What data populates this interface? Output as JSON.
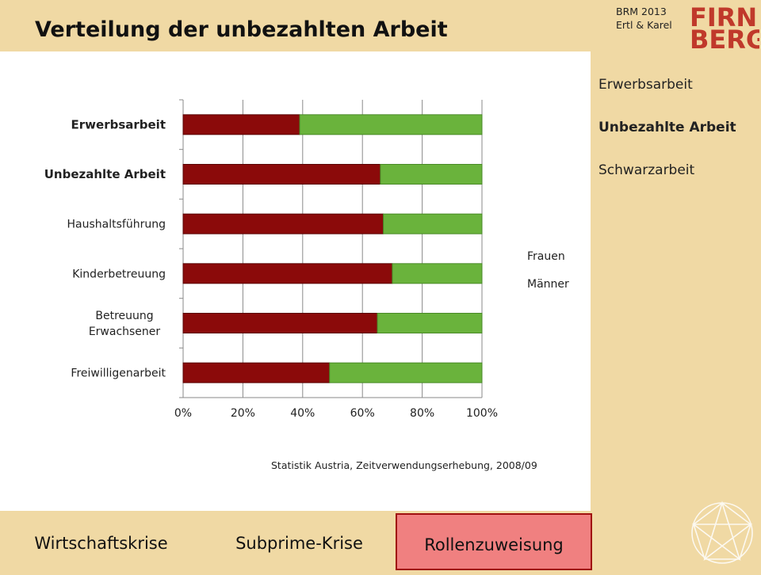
{
  "header": {
    "title": "Verteilung der unbezahlten Arbeit",
    "course": "BRM 2013",
    "authors": "Ertl & Karel",
    "logo_text_top": "FIRN",
    "logo_text_bottom": "BERG"
  },
  "side_nav": {
    "items": [
      {
        "label": "Erwerbsarbeit",
        "active": false
      },
      {
        "label": "Unbezahlte Arbeit",
        "active": true
      },
      {
        "label": "Schwarzarbeit",
        "active": false
      }
    ]
  },
  "bottom_nav": {
    "tabs": [
      {
        "label": "Wirtschaftskrise",
        "active": false
      },
      {
        "label": "Subprime-Krise",
        "active": false
      },
      {
        "label": "Rollenzuweisung",
        "active": true
      }
    ]
  },
  "colors": {
    "frauen": "#8b0a0a",
    "maenner": "#6ab33c",
    "background": "#f0d9a4",
    "active_tab": "#f08080"
  },
  "chart_data": {
    "type": "bar",
    "orientation": "horizontal",
    "stacked": "percent",
    "categories": [
      "Erwerbsarbeit",
      "Unbezahlte Arbeit",
      "Haushaltsführung",
      "Kinderbetreuung",
      "Betreuung Erwachsener",
      "Freiwilligenarbeit"
    ],
    "category_lines": [
      [
        "Erwerbsarbeit"
      ],
      [
        "Unbezahlte Arbeit"
      ],
      [
        "Haushaltsführung"
      ],
      [
        "Kinderbetreuung"
      ],
      [
        "Betreuung",
        "Erwachsener"
      ],
      [
        "Freiwilligenarbeit"
      ]
    ],
    "category_bold": [
      true,
      true,
      false,
      false,
      false,
      false
    ],
    "series": [
      {
        "name": "Frauen",
        "values": [
          39,
          66,
          67,
          70,
          65,
          49
        ]
      },
      {
        "name": "Männer",
        "values": [
          61,
          34,
          33,
          30,
          35,
          51
        ]
      }
    ],
    "x_ticks": [
      "0%",
      "20%",
      "40%",
      "60%",
      "80%",
      "100%"
    ],
    "xlim": [
      0,
      100
    ],
    "grid": true,
    "legend": "right",
    "source": "Statistik Austria, Zeitverwendungserhebung,  2008/09"
  }
}
